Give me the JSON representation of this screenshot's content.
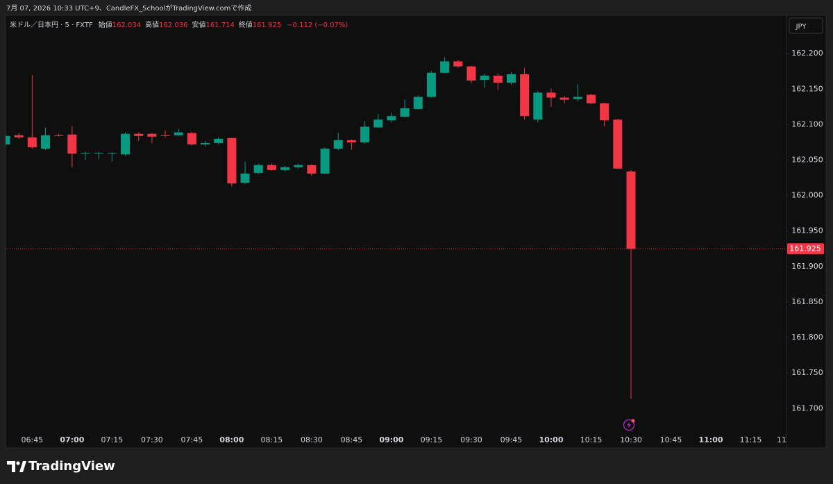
{
  "header": "7月 07, 2026 10:33 UTC+9、CandleFX_SchoolがTradingView.comで作成",
  "legend": {
    "symbol": "米ドル／日本円 · 5 · FXTF",
    "items": [
      {
        "label": "始値",
        "value": 162.034
      },
      {
        "label": "高値",
        "value": 162.036
      },
      {
        "label": "安値",
        "value": 161.714
      },
      {
        "label": "終値",
        "value": 161.925
      }
    ],
    "change": "−0.112 (−0.07%)"
  },
  "currency": "JPY",
  "brand": "TradingView",
  "chart_data": {
    "type": "candlestick",
    "up_color": "#089981",
    "down_color": "#f23645",
    "categories": [
      null,
      null,
      "06:45",
      null,
      null,
      "07:00",
      null,
      null,
      "07:15",
      null,
      null,
      "07:30",
      null,
      null,
      "07:45",
      null,
      null,
      "08:00",
      null,
      null,
      "08:15",
      null,
      null,
      "08:30",
      null,
      null,
      "08:45",
      null,
      null,
      "09:00",
      null,
      null,
      "09:15",
      null,
      null,
      "09:30",
      null,
      null,
      "09:45",
      null,
      null,
      "10:00",
      null,
      null,
      "10:15",
      null,
      null,
      "10:30",
      null,
      null,
      "10:45",
      null,
      null,
      "11:00",
      null,
      null,
      "11:15",
      null,
      null,
      "11"
    ],
    "open": [
      162.072,
      162.085,
      162.082,
      162.066,
      162.085,
      162.086,
      162.059,
      162.06,
      162.059,
      162.058,
      162.087,
      162.087,
      162.085,
      162.085,
      162.088,
      162.072,
      162.074,
      162.081,
      162.018,
      162.032,
      162.043,
      162.036,
      162.04,
      162.043,
      162.031,
      162.066,
      162.078,
      162.075,
      162.096,
      162.106,
      162.111,
      162.122,
      162.139,
      162.173,
      162.189,
      162.182,
      162.163,
      162.169,
      162.159,
      162.171,
      162.107,
      162.145,
      162.138,
      162.136,
      162.142,
      162.13,
      162.107,
      162.034,
      null,
      null,
      null,
      null,
      null,
      null,
      null,
      null,
      null,
      null,
      null,
      null
    ],
    "high": [
      162.086,
      162.088,
      162.17,
      162.096,
      162.087,
      162.098,
      162.062,
      162.062,
      162.061,
      162.089,
      162.089,
      162.088,
      162.092,
      162.094,
      162.09,
      162.077,
      162.082,
      162.082,
      162.048,
      162.045,
      162.045,
      162.042,
      162.045,
      162.044,
      162.068,
      162.088,
      162.079,
      162.105,
      162.115,
      162.117,
      162.135,
      162.141,
      162.175,
      162.195,
      162.191,
      162.183,
      162.172,
      162.172,
      162.174,
      162.18,
      162.147,
      162.151,
      162.14,
      162.157,
      162.143,
      162.131,
      162.108,
      162.036,
      null,
      null,
      null,
      null,
      null,
      null,
      null,
      null,
      null,
      null,
      null,
      null
    ],
    "low": [
      162.07,
      162.08,
      162.066,
      162.064,
      162.083,
      162.04,
      162.05,
      162.051,
      162.048,
      162.056,
      162.077,
      162.074,
      162.082,
      162.084,
      162.07,
      162.069,
      162.072,
      162.013,
      162.016,
      162.03,
      162.035,
      162.034,
      162.038,
      162.028,
      162.03,
      162.064,
      162.065,
      162.073,
      162.095,
      162.103,
      162.11,
      162.121,
      162.138,
      162.172,
      162.18,
      162.158,
      162.152,
      162.149,
      162.156,
      162.107,
      162.103,
      162.125,
      162.13,
      162.133,
      162.129,
      162.097,
      162.038,
      161.714,
      null,
      null,
      null,
      null,
      null,
      null,
      null,
      null,
      null,
      null,
      null,
      null
    ],
    "close": [
      162.084,
      162.082,
      162.068,
      162.085,
      162.084,
      162.059,
      162.06,
      162.06,
      162.06,
      162.087,
      162.084,
      162.083,
      162.084,
      162.089,
      162.072,
      162.074,
      162.08,
      162.017,
      162.031,
      162.043,
      162.036,
      162.04,
      162.043,
      162.031,
      162.066,
      162.078,
      162.075,
      162.097,
      162.107,
      162.112,
      162.123,
      162.139,
      162.173,
      162.189,
      162.182,
      162.162,
      162.169,
      162.159,
      162.171,
      162.112,
      162.145,
      162.138,
      162.135,
      162.139,
      162.13,
      162.106,
      162.038,
      161.925,
      null,
      null,
      null,
      null,
      null,
      null,
      null,
      null,
      null,
      null,
      null,
      null
    ],
    "ylim": [
      161.667,
      162.254
    ],
    "yticks": [
      {
        "value": 161.7,
        "label": "161.700"
      },
      {
        "value": 161.75,
        "label": "161.750"
      },
      {
        "value": 161.8,
        "label": "161.800"
      },
      {
        "value": 161.85,
        "label": "161.850"
      },
      {
        "value": 161.9,
        "label": "161.900"
      },
      {
        "value": 161.95,
        "label": "161.950"
      },
      {
        "value": 162.0,
        "label": "162.000"
      },
      {
        "value": 162.05,
        "label": "162.050"
      },
      {
        "value": 162.1,
        "label": "162.100"
      },
      {
        "value": 162.15,
        "label": "162.150"
      },
      {
        "value": 162.2,
        "label": "162.200"
      }
    ],
    "last_price": {
      "value": 161.925,
      "label": "161.925"
    }
  }
}
